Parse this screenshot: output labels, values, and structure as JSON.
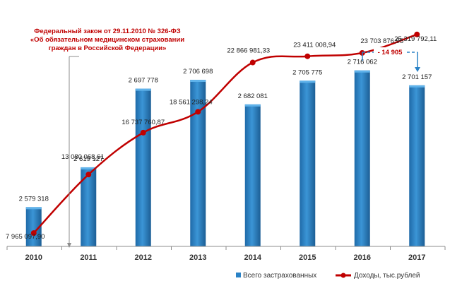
{
  "colors": {
    "bar": "#2a82c6",
    "bar_dark": "#1d5f96",
    "line": "#c00000",
    "annotation": "#c00000",
    "bracket": "#2a82c6",
    "axis": "#8c8c8c"
  },
  "annotation": {
    "law_lines": [
      "Федеральный закон от 29.11.2010 № 326-ФЗ",
      "«Об обязательном медицинском страховании",
      "граждан в Российской Федерации»"
    ],
    "difference_label": "- 14 905"
  },
  "legend": {
    "bars_label": "Всего застрахованных",
    "line_label": "Доходы, тыс.рублей"
  },
  "chart_data": {
    "type": "bar",
    "categories": [
      "2010",
      "2011",
      "2012",
      "2013",
      "2014",
      "2015",
      "2016",
      "2017"
    ],
    "series": [
      {
        "name": "Всего застрахованных",
        "type": "bar",
        "values": [
          2579318,
          2619127,
          2697778,
          2706698,
          2682081,
          2705775,
          2716062,
          2701157
        ],
        "labels": [
          "2 579 318",
          "2 619 127",
          "2 697 778",
          "2 706 698",
          "2 682 081",
          "2 705 775",
          "2 716 062",
          "2 701 157"
        ],
        "ylim": [
          2540000,
          2730000
        ]
      },
      {
        "name": "Доходы, тыс.рублей",
        "type": "line",
        "values": [
          7965097.9,
          13080068.61,
          16737760.87,
          18561298.24,
          22866981.33,
          23411008.94,
          23703876.95,
          25319792.11
        ],
        "labels": [
          "7 965 097,90",
          "13 080 068,61",
          "16 737 760,87",
          "18 561 298,24",
          "22 866 981,33",
          "23 411 008,94",
          "23 703 876,95",
          "25 319 792,11"
        ],
        "ylim": [
          6800000,
          26600000
        ]
      }
    ],
    "title": "",
    "xlabel": "",
    "ylabel": "",
    "grid": false,
    "legend_position": "bottom-right"
  }
}
